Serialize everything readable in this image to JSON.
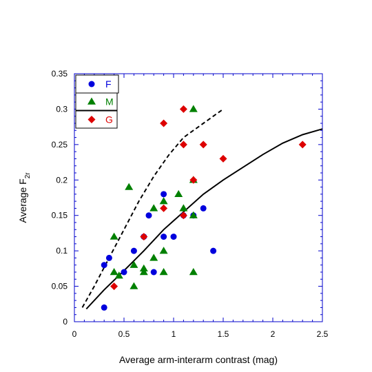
{
  "chart_data": {
    "type": "scatter",
    "xlabel": "Average arm-interarm contrast (mag)",
    "ylabel_main": "Average F",
    "ylabel_sub": "2r",
    "xlim": [
      0,
      2.5
    ],
    "ylim": [
      0,
      0.35
    ],
    "xticks": [
      "0",
      "0.5",
      "1",
      "1.5",
      "2",
      "2.5"
    ],
    "yticks": [
      "0",
      "0.05",
      "0.1",
      "0.15",
      "0.2",
      "0.25",
      "0.3",
      "0.35"
    ],
    "grid": false,
    "legend_position": "top-left",
    "series": [
      {
        "name": "F",
        "marker": "circle",
        "color": "#0000dd",
        "points": [
          [
            0.3,
            0.02
          ],
          [
            0.3,
            0.08
          ],
          [
            0.35,
            0.09
          ],
          [
            0.5,
            0.07
          ],
          [
            0.6,
            0.1
          ],
          [
            0.7,
            0.12
          ],
          [
            0.75,
            0.15
          ],
          [
            0.8,
            0.07
          ],
          [
            0.9,
            0.12
          ],
          [
            0.9,
            0.18
          ],
          [
            1.0,
            0.12
          ],
          [
            1.1,
            0.15
          ],
          [
            1.2,
            0.15
          ],
          [
            1.3,
            0.16
          ],
          [
            1.4,
            0.1
          ]
        ]
      },
      {
        "name": "M",
        "marker": "triangle",
        "color": "#008000",
        "points": [
          [
            0.4,
            0.12
          ],
          [
            0.4,
            0.07
          ],
          [
            0.45,
            0.065
          ],
          [
            0.55,
            0.19
          ],
          [
            0.6,
            0.08
          ],
          [
            0.6,
            0.05
          ],
          [
            0.7,
            0.07
          ],
          [
            0.7,
            0.075
          ],
          [
            0.8,
            0.09
          ],
          [
            0.8,
            0.16
          ],
          [
            0.9,
            0.1
          ],
          [
            0.9,
            0.17
          ],
          [
            0.9,
            0.07
          ],
          [
            1.05,
            0.18
          ],
          [
            1.1,
            0.16
          ],
          [
            1.2,
            0.07
          ],
          [
            1.2,
            0.2
          ],
          [
            1.2,
            0.15
          ],
          [
            1.2,
            0.3
          ]
        ]
      },
      {
        "name": "G",
        "marker": "diamond",
        "color": "#dd0000",
        "points": [
          [
            0.4,
            0.05
          ],
          [
            0.7,
            0.12
          ],
          [
            0.9,
            0.28
          ],
          [
            0.9,
            0.16
          ],
          [
            1.1,
            0.3
          ],
          [
            1.1,
            0.25
          ],
          [
            1.1,
            0.15
          ],
          [
            1.2,
            0.2
          ],
          [
            1.3,
            0.25
          ],
          [
            1.5,
            0.23
          ],
          [
            2.3,
            0.25
          ]
        ]
      }
    ],
    "curves": [
      {
        "style": "dashed",
        "points": [
          [
            0.08,
            0.02
          ],
          [
            0.2,
            0.05
          ],
          [
            0.35,
            0.09
          ],
          [
            0.5,
            0.13
          ],
          [
            0.65,
            0.17
          ],
          [
            0.8,
            0.205
          ],
          [
            0.95,
            0.235
          ],
          [
            1.1,
            0.26
          ],
          [
            1.3,
            0.28
          ],
          [
            1.5,
            0.3
          ]
        ]
      },
      {
        "style": "solid",
        "points": [
          [
            0.12,
            0.018
          ],
          [
            0.3,
            0.045
          ],
          [
            0.5,
            0.072
          ],
          [
            0.7,
            0.1
          ],
          [
            0.9,
            0.13
          ],
          [
            1.1,
            0.155
          ],
          [
            1.3,
            0.18
          ],
          [
            1.5,
            0.2
          ],
          [
            1.7,
            0.218
          ],
          [
            1.9,
            0.236
          ],
          [
            2.1,
            0.252
          ],
          [
            2.3,
            0.264
          ],
          [
            2.5,
            0.272
          ]
        ]
      }
    ]
  }
}
